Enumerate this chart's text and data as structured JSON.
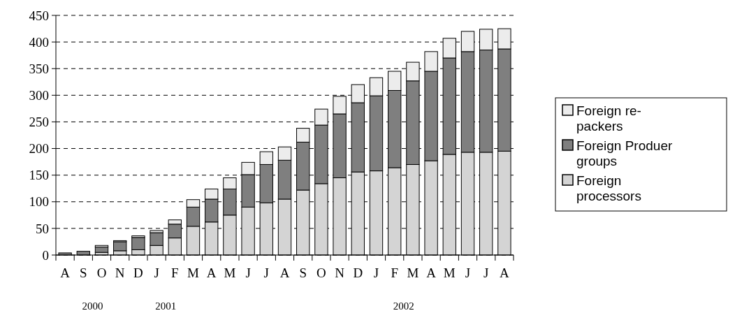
{
  "chart_data": {
    "type": "bar",
    "stacked": true,
    "categories": [
      "A",
      "S",
      "O",
      "N",
      "D",
      "J",
      "F",
      "M",
      "A",
      "M",
      "J",
      "J",
      "A",
      "S",
      "O",
      "N",
      "D",
      "J",
      "F",
      "M",
      "A",
      "M",
      "J",
      "J",
      "A"
    ],
    "series": [
      {
        "name": "Foreign processors",
        "color": "#d4d4d4",
        "values": [
          0,
          0,
          5,
          8,
          10,
          18,
          32,
          54,
          62,
          75,
          90,
          98,
          105,
          122,
          134,
          145,
          156,
          158,
          164,
          170,
          177,
          189,
          193,
          193,
          195
        ]
      },
      {
        "name": "Foreign Produer groups",
        "color": "#7f7f7f",
        "values": [
          4,
          7,
          10,
          17,
          23,
          24,
          26,
          36,
          43,
          49,
          61,
          72,
          73,
          90,
          110,
          120,
          130,
          141,
          145,
          157,
          168,
          181,
          189,
          192,
          192
        ]
      },
      {
        "name": "Foreign re-packers",
        "color": "#ececec",
        "values": [
          0,
          0,
          3,
          2,
          3,
          4,
          8,
          14,
          19,
          21,
          23,
          24,
          25,
          26,
          30,
          33,
          34,
          34,
          36,
          35,
          37,
          37,
          38,
          39,
          38
        ]
      }
    ],
    "ylim": [
      0,
      450
    ],
    "yticks": [
      0,
      50,
      100,
      150,
      200,
      250,
      300,
      350,
      400,
      450
    ],
    "grid": "y",
    "legend": "right",
    "annotations": [
      "2000",
      "2001",
      "2002"
    ]
  }
}
